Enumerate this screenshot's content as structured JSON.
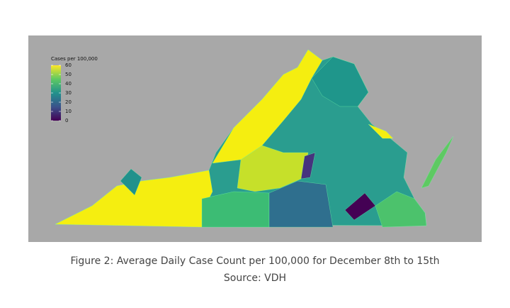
{
  "legend": {
    "title": "Cases per 100,000",
    "range": [
      0,
      60
    ],
    "ticks": [
      60,
      50,
      40,
      30,
      20,
      10,
      0
    ],
    "colorscale": [
      "#440154",
      "#3b528b",
      "#21918c",
      "#5ec962",
      "#fde725"
    ]
  },
  "caption": {
    "line1": "Figure 2: Average Daily Case Count per 100,000 for December 8th to 15th",
    "line2": "Source: VDH"
  }
}
